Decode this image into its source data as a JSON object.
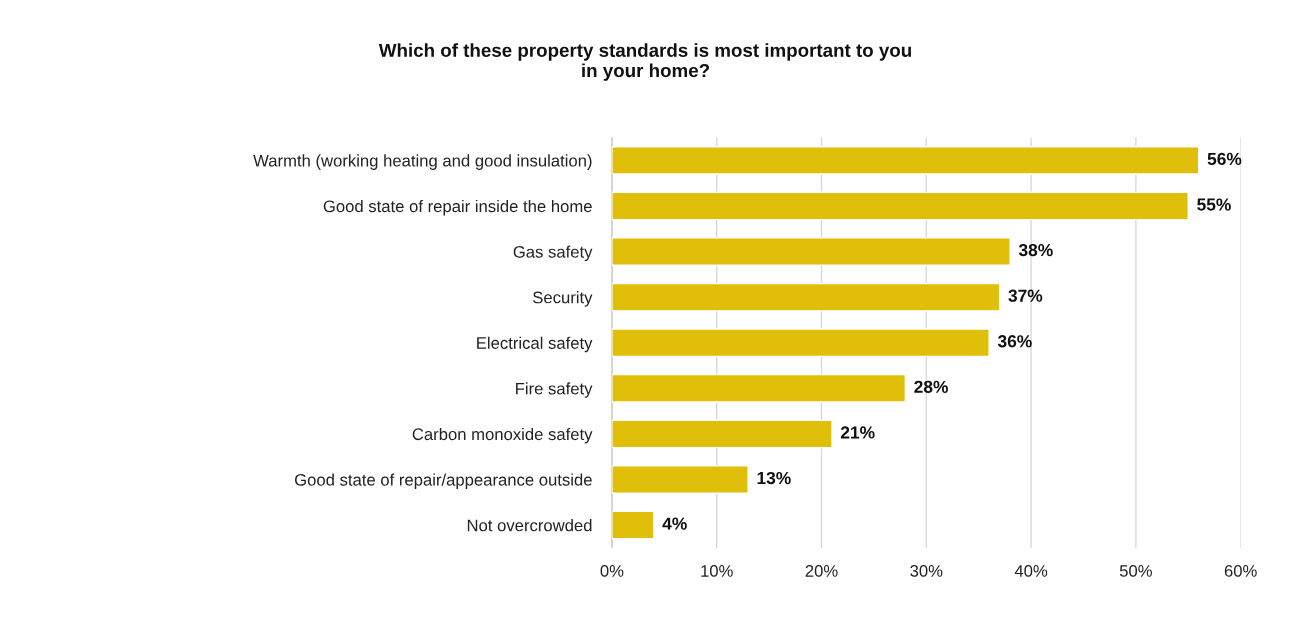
{
  "chart_data": {
    "type": "bar",
    "orientation": "horizontal",
    "title": "Which of these property standards is most important to you\nin your home?",
    "categories": [
      "Warmth (working heating and good insulation)",
      "Good state of repair inside the home",
      "Gas safety",
      "Security",
      "Electrical safety",
      "Fire safety",
      "Carbon monoxide safety",
      "Good state of repair/appearance outside",
      "Not overcrowded"
    ],
    "values": [
      56,
      55,
      38,
      37,
      36,
      28,
      21,
      13,
      4
    ],
    "value_labels": [
      "56%",
      "55%",
      "38%",
      "37%",
      "36%",
      "28%",
      "21%",
      "13%",
      "4%"
    ],
    "color": "#e0bf0a",
    "xlim": [
      0,
      60
    ],
    "xticks": [
      {
        "value": 0,
        "label": "0%"
      },
      {
        "value": 10,
        "label": "10%"
      },
      {
        "value": 20,
        "label": "20%"
      },
      {
        "value": 30,
        "label": "30%"
      },
      {
        "value": 40,
        "label": "40%"
      },
      {
        "value": 50,
        "label": "50%"
      },
      {
        "value": 60,
        "label": "60%"
      }
    ],
    "grid": "x"
  }
}
